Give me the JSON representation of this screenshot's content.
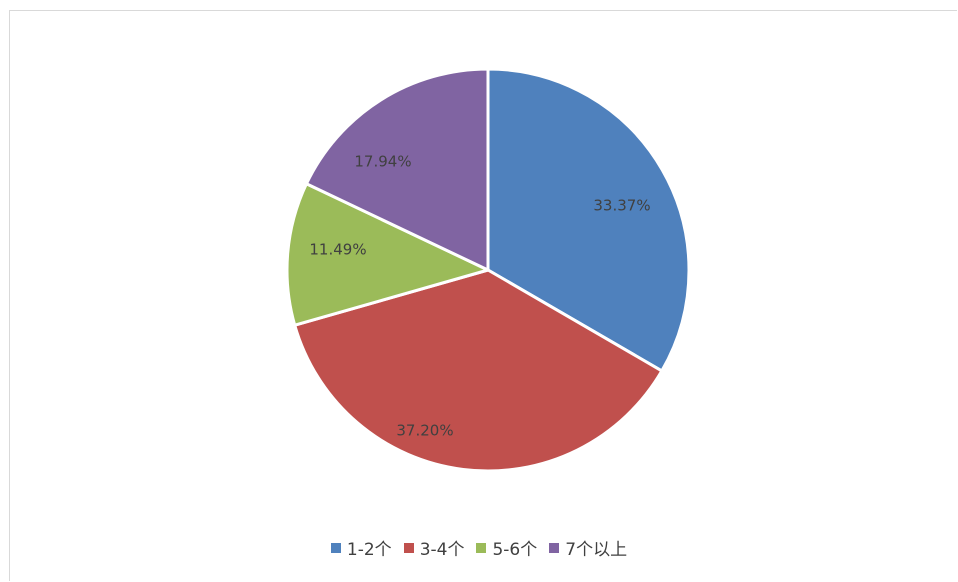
{
  "chart_data": {
    "type": "pie",
    "title": "",
    "legend_position": "bottom",
    "slices": [
      {
        "label": "1-2个",
        "value": 33.37,
        "value_label": "33.37%",
        "color": "#4f81bd"
      },
      {
        "label": "3-4个",
        "value": 37.2,
        "value_label": "37.20%",
        "color": "#c0504d"
      },
      {
        "label": "5-6个",
        "value": 11.49,
        "value_label": "11.49%",
        "color": "#9bbb59"
      },
      {
        "label": "7个以上",
        "value": 17.94,
        "value_label": "17.94%",
        "color": "#8064a2"
      }
    ]
  },
  "legend": {
    "items": [
      {
        "label": "1-2个",
        "color": "#4f81bd"
      },
      {
        "label": "3-4个",
        "color": "#c0504d"
      },
      {
        "label": "5-6个",
        "color": "#9bbb59"
      },
      {
        "label": "7个以上",
        "color": "#8064a2"
      }
    ]
  }
}
